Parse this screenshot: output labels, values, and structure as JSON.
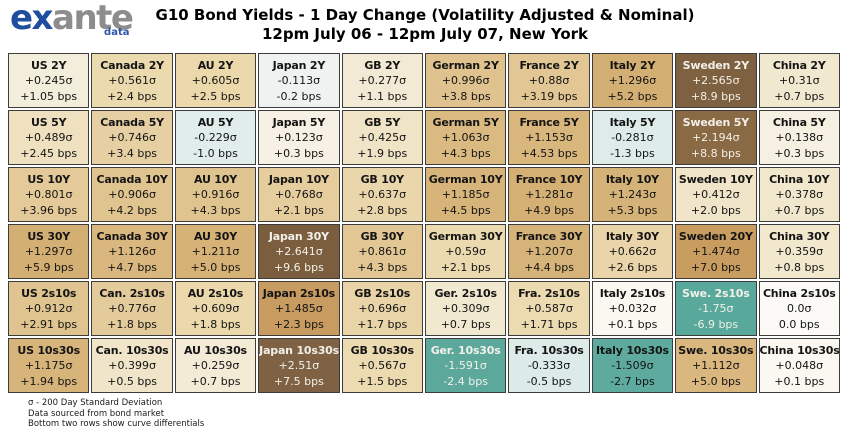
{
  "logo": {
    "ex": "ex",
    "ante": "ante",
    "data": "data",
    "ex_color": "#1F4E9E",
    "ante_color": "#8D8D8D",
    "data_color": "#2B55A8"
  },
  "header": {
    "title_line1": "G10 Bond Yields - 1 Day Change (Volatility Adjusted & Nominal)",
    "title_line2": "12pm July 06 - 12pm July 07, New York"
  },
  "footnotes": [
    "σ - 200 Day Standard Deviation",
    "Data sourced from bond market",
    "Bottom two rows show curve differentials"
  ],
  "chart_data": {
    "type": "heatmap",
    "title": "G10 Bond Yields - 1 Day Change (Volatility Adjusted & Nominal)",
    "subtitle": "12pm July 06 - 12pm July 07, New York",
    "columns": [
      "US",
      "Canada",
      "AU",
      "Japan",
      "GB",
      "German",
      "France",
      "Italy",
      "Sweden",
      "China"
    ],
    "rows": [
      "2Y",
      "5Y",
      "10Y",
      "30Y",
      "2s10s",
      "10s30s"
    ],
    "series": [
      {
        "name": "volatility_adjusted_change",
        "unit": "sigma",
        "values": [
          [
            0.245,
            0.561,
            0.605,
            -0.113,
            0.277,
            0.996,
            0.88,
            1.296,
            2.565,
            0.31
          ],
          [
            0.489,
            0.746,
            -0.229,
            0.123,
            0.425,
            1.063,
            1.153,
            -0.281,
            2.194,
            0.138
          ],
          [
            0.801,
            0.906,
            0.916,
            0.768,
            0.637,
            1.185,
            1.281,
            1.243,
            0.412,
            0.378
          ],
          [
            1.297,
            1.126,
            1.211,
            2.641,
            0.861,
            0.59,
            1.207,
            0.662,
            1.474,
            0.359
          ],
          [
            0.912,
            0.776,
            0.609,
            1.485,
            0.696,
            0.309,
            0.587,
            0.032,
            -1.75,
            0.0
          ],
          [
            1.175,
            0.399,
            0.259,
            2.51,
            0.567,
            -1.591,
            -0.333,
            -1.509,
            1.112,
            0.048
          ]
        ]
      },
      {
        "name": "nominal_change",
        "unit": "bps",
        "values": [
          [
            1.05,
            2.4,
            2.5,
            -0.2,
            1.1,
            3.8,
            3.19,
            5.2,
            8.9,
            0.7
          ],
          [
            2.45,
            3.4,
            -1.0,
            0.3,
            1.9,
            4.3,
            4.53,
            -1.3,
            8.8,
            0.3
          ],
          [
            3.96,
            4.2,
            4.3,
            2.1,
            2.8,
            4.5,
            4.9,
            5.3,
            2.0,
            0.7
          ],
          [
            5.9,
            4.7,
            5.0,
            9.6,
            4.3,
            2.1,
            4.4,
            2.6,
            7.0,
            0.8
          ],
          [
            2.91,
            1.8,
            1.8,
            2.3,
            1.7,
            0.7,
            1.71,
            0.1,
            -6.9,
            0.0
          ],
          [
            1.94,
            0.5,
            0.7,
            7.5,
            1.5,
            -2.4,
            -0.5,
            -2.7,
            5.0,
            0.1
          ]
        ]
      }
    ],
    "color_scale": {
      "high_positive": "#7A5E3E",
      "mid_positive": "#D4AF73",
      "neutral": "#FBFAF6",
      "mild_negative": "#DCEBE8",
      "high_negative": "#58A89B"
    },
    "legend_position": "none",
    "grid": true
  },
  "table": {
    "default_fg": "#141414",
    "light_fg": "#F3F0E9",
    "rows": [
      {
        "cells": [
          {
            "label": "US 2Y",
            "sigma": "+0.245σ",
            "bps": "+1.05 bps",
            "bg": "#F3EDDB"
          },
          {
            "label": "Canada 2Y",
            "sigma": "+0.561σ",
            "bps": "+2.4 bps",
            "bg": "#ECDAAF"
          },
          {
            "label": "AU 2Y",
            "sigma": "+0.605σ",
            "bps": "+2.5 bps",
            "bg": "#EBD8AB"
          },
          {
            "label": "Japan 2Y",
            "sigma": "-0.113σ",
            "bps": "-0.2 bps",
            "bg": "#EEF3F1"
          },
          {
            "label": "GB 2Y",
            "sigma": "+0.277σ",
            "bps": "+1.1 bps",
            "bg": "#F2EAD4"
          },
          {
            "label": "German 2Y",
            "sigma": "+0.996σ",
            "bps": "+3.8 bps",
            "bg": "#DFC28D"
          },
          {
            "label": "France 2Y",
            "sigma": "+0.88σ",
            "bps": "+3.19 bps",
            "bg": "#E2C795"
          },
          {
            "label": "Italy 2Y",
            "sigma": "+1.296σ",
            "bps": "+5.2 bps",
            "bg": "#D4AF73"
          },
          {
            "label": "Sweden 2Y",
            "sigma": "+2.565σ",
            "bps": "+8.9 bps",
            "bg": "#7D6141",
            "fg": "#F3F0E9"
          },
          {
            "label": "China 2Y",
            "sigma": "+0.31σ",
            "bps": "+0.7 bps",
            "bg": "#F1E8D0"
          }
        ]
      },
      {
        "cells": [
          {
            "label": "US 5Y",
            "sigma": "+0.489σ",
            "bps": "+2.45 bps",
            "bg": "#EFE1C0"
          },
          {
            "label": "Canada 5Y",
            "sigma": "+0.746σ",
            "bps": "+3.4 bps",
            "bg": "#E6CFA2"
          },
          {
            "label": "AU 5Y",
            "sigma": "-0.229σ",
            "bps": "-1.0 bps",
            "bg": "#E0EDEA"
          },
          {
            "label": "Japan 5Y",
            "sigma": "+0.123σ",
            "bps": "+0.3 bps",
            "bg": "#F6F1E4"
          },
          {
            "label": "GB 5Y",
            "sigma": "+0.425σ",
            "bps": "+1.9 bps",
            "bg": "#F0E4C6"
          },
          {
            "label": "German 5Y",
            "sigma": "+1.063σ",
            "bps": "+4.3 bps",
            "bg": "#DBBA82"
          },
          {
            "label": "France 5Y",
            "sigma": "+1.153σ",
            "bps": "+4.53 bps",
            "bg": "#D8B67C"
          },
          {
            "label": "Italy 5Y",
            "sigma": "-0.281σ",
            "bps": "-1.3 bps",
            "bg": "#DDECE9"
          },
          {
            "label": "Sweden 5Y",
            "sigma": "+2.194σ",
            "bps": "+8.8 bps",
            "bg": "#8A6A44",
            "fg": "#F3F0E9"
          },
          {
            "label": "China 5Y",
            "sigma": "+0.138σ",
            "bps": "+0.3 bps",
            "bg": "#F6F0E2"
          }
        ]
      },
      {
        "cells": [
          {
            "label": "US 10Y",
            "sigma": "+0.801σ",
            "bps": "+3.96 bps",
            "bg": "#E4CA99"
          },
          {
            "label": "Canada 10Y",
            "sigma": "+0.906σ",
            "bps": "+4.2 bps",
            "bg": "#E0C490"
          },
          {
            "label": "AU 10Y",
            "sigma": "+0.916σ",
            "bps": "+4.3 bps",
            "bg": "#E0C48F"
          },
          {
            "label": "Japan 10Y",
            "sigma": "+0.768σ",
            "bps": "+2.1 bps",
            "bg": "#E5CD9E"
          },
          {
            "label": "GB 10Y",
            "sigma": "+0.637σ",
            "bps": "+2.8 bps",
            "bg": "#EAD6AB"
          },
          {
            "label": "German 10Y",
            "sigma": "+1.185σ",
            "bps": "+4.5 bps",
            "bg": "#D7B47A"
          },
          {
            "label": "France 10Y",
            "sigma": "+1.281σ",
            "bps": "+4.9 bps",
            "bg": "#D4B074"
          },
          {
            "label": "Italy 10Y",
            "sigma": "+1.243σ",
            "bps": "+5.3 bps",
            "bg": "#D5B277"
          },
          {
            "label": "Sweden 10Y",
            "sigma": "+0.412σ",
            "bps": "+2.0 bps",
            "bg": "#F0E5C8"
          },
          {
            "label": "China 10Y",
            "sigma": "+0.378σ",
            "bps": "+0.7 bps",
            "bg": "#F1E7CC"
          }
        ]
      },
      {
        "cells": [
          {
            "label": "US 30Y",
            "sigma": "+1.297σ",
            "bps": "+5.9 bps",
            "bg": "#D4AF73"
          },
          {
            "label": "Canada 30Y",
            "sigma": "+1.126σ",
            "bps": "+4.7 bps",
            "bg": "#D9B77E"
          },
          {
            "label": "AU 30Y",
            "sigma": "+1.211σ",
            "bps": "+5.0 bps",
            "bg": "#D6B277"
          },
          {
            "label": "Japan 30Y",
            "sigma": "+2.641σ",
            "bps": "+9.6 bps",
            "bg": "#7A5E3E",
            "fg": "#F3F0E9"
          },
          {
            "label": "GB 30Y",
            "sigma": "+0.861σ",
            "bps": "+4.3 bps",
            "bg": "#E2C795"
          },
          {
            "label": "German 30Y",
            "sigma": "+0.59σ",
            "bps": "+2.1 bps",
            "bg": "#EBD9AF"
          },
          {
            "label": "France 30Y",
            "sigma": "+1.207σ",
            "bps": "+4.4 bps",
            "bg": "#D6B378"
          },
          {
            "label": "Italy 30Y",
            "sigma": "+0.662σ",
            "bps": "+2.6 bps",
            "bg": "#EAD5AA"
          },
          {
            "label": "Sweden 20Y",
            "sigma": "+1.474σ",
            "bps": "+7.0 bps",
            "bg": "#C99D60"
          },
          {
            "label": "China 30Y",
            "sigma": "+0.359σ",
            "bps": "+0.8 bps",
            "bg": "#F1E8CE"
          }
        ]
      },
      {
        "cells": [
          {
            "label": "US 2s10s",
            "sigma": "+0.912σ",
            "bps": "+2.91 bps",
            "bg": "#E0C48F"
          },
          {
            "label": "Can. 2s10s",
            "sigma": "+0.776σ",
            "bps": "+1.8 bps",
            "bg": "#E4CB9C"
          },
          {
            "label": "AU 2s10s",
            "sigma": "+0.609σ",
            "bps": "+1.8 bps",
            "bg": "#EBD8AB"
          },
          {
            "label": "Japan 2s10s",
            "sigma": "+1.485σ",
            "bps": "+2.3 bps",
            "bg": "#C89C60"
          },
          {
            "label": "GB 2s10s",
            "sigma": "+0.696σ",
            "bps": "+1.7 bps",
            "bg": "#E9D4A7"
          },
          {
            "label": "Ger. 2s10s",
            "sigma": "+0.309σ",
            "bps": "+0.7 bps",
            "bg": "#F1E8D0"
          },
          {
            "label": "Fra. 2s10s",
            "sigma": "+0.587σ",
            "bps": "+1.71 bps",
            "bg": "#ECDAB0"
          },
          {
            "label": "Italy 2s10s",
            "sigma": "+0.032σ",
            "bps": "+0.1 bps",
            "bg": "#FAF8F1"
          },
          {
            "label": "Swe. 2s10s",
            "sigma": "-1.75σ",
            "bps": "-6.9 bps",
            "bg": "#58A89B",
            "fg": "#F3F0E9"
          },
          {
            "label": "China 2s10s",
            "sigma": "0.0σ",
            "bps": "0.0 bps",
            "bg": "#FBFAF6"
          }
        ]
      },
      {
        "cells": [
          {
            "label": "US 10s30s",
            "sigma": "+1.175σ",
            "bps": "+1.94 bps",
            "bg": "#D7B47A"
          },
          {
            "label": "Can. 10s30s",
            "sigma": "+0.399σ",
            "bps": "+0.5 bps",
            "bg": "#F0E5C8"
          },
          {
            "label": "AU 10s30s",
            "sigma": "+0.259σ",
            "bps": "+0.7 bps",
            "bg": "#F3EBD6"
          },
          {
            "label": "Japan 10s30s",
            "sigma": "+2.51σ",
            "bps": "+7.5 bps",
            "bg": "#7E6243",
            "fg": "#F3F0E9"
          },
          {
            "label": "GB 10s30s",
            "sigma": "+0.567σ",
            "bps": "+1.5 bps",
            "bg": "#ECDAB0"
          },
          {
            "label": "Ger. 10s30s",
            "sigma": "-1.591σ",
            "bps": "-2.4 bps",
            "bg": "#5CA99C",
            "fg": "#F3F0E9"
          },
          {
            "label": "Fra. 10s30s",
            "sigma": "-0.333σ",
            "bps": "-0.5 bps",
            "bg": "#DCEBE8"
          },
          {
            "label": "Italy 10s30s",
            "sigma": "-1.509σ",
            "bps": "-2.7 bps",
            "bg": "#5FAA9E"
          },
          {
            "label": "Swe. 10s30s",
            "sigma": "+1.112σ",
            "bps": "+5.0 bps",
            "bg": "#D9B77E"
          },
          {
            "label": "China 10s30s",
            "sigma": "+0.048σ",
            "bps": "+0.1 bps",
            "bg": "#FAF8F1"
          }
        ]
      }
    ]
  }
}
